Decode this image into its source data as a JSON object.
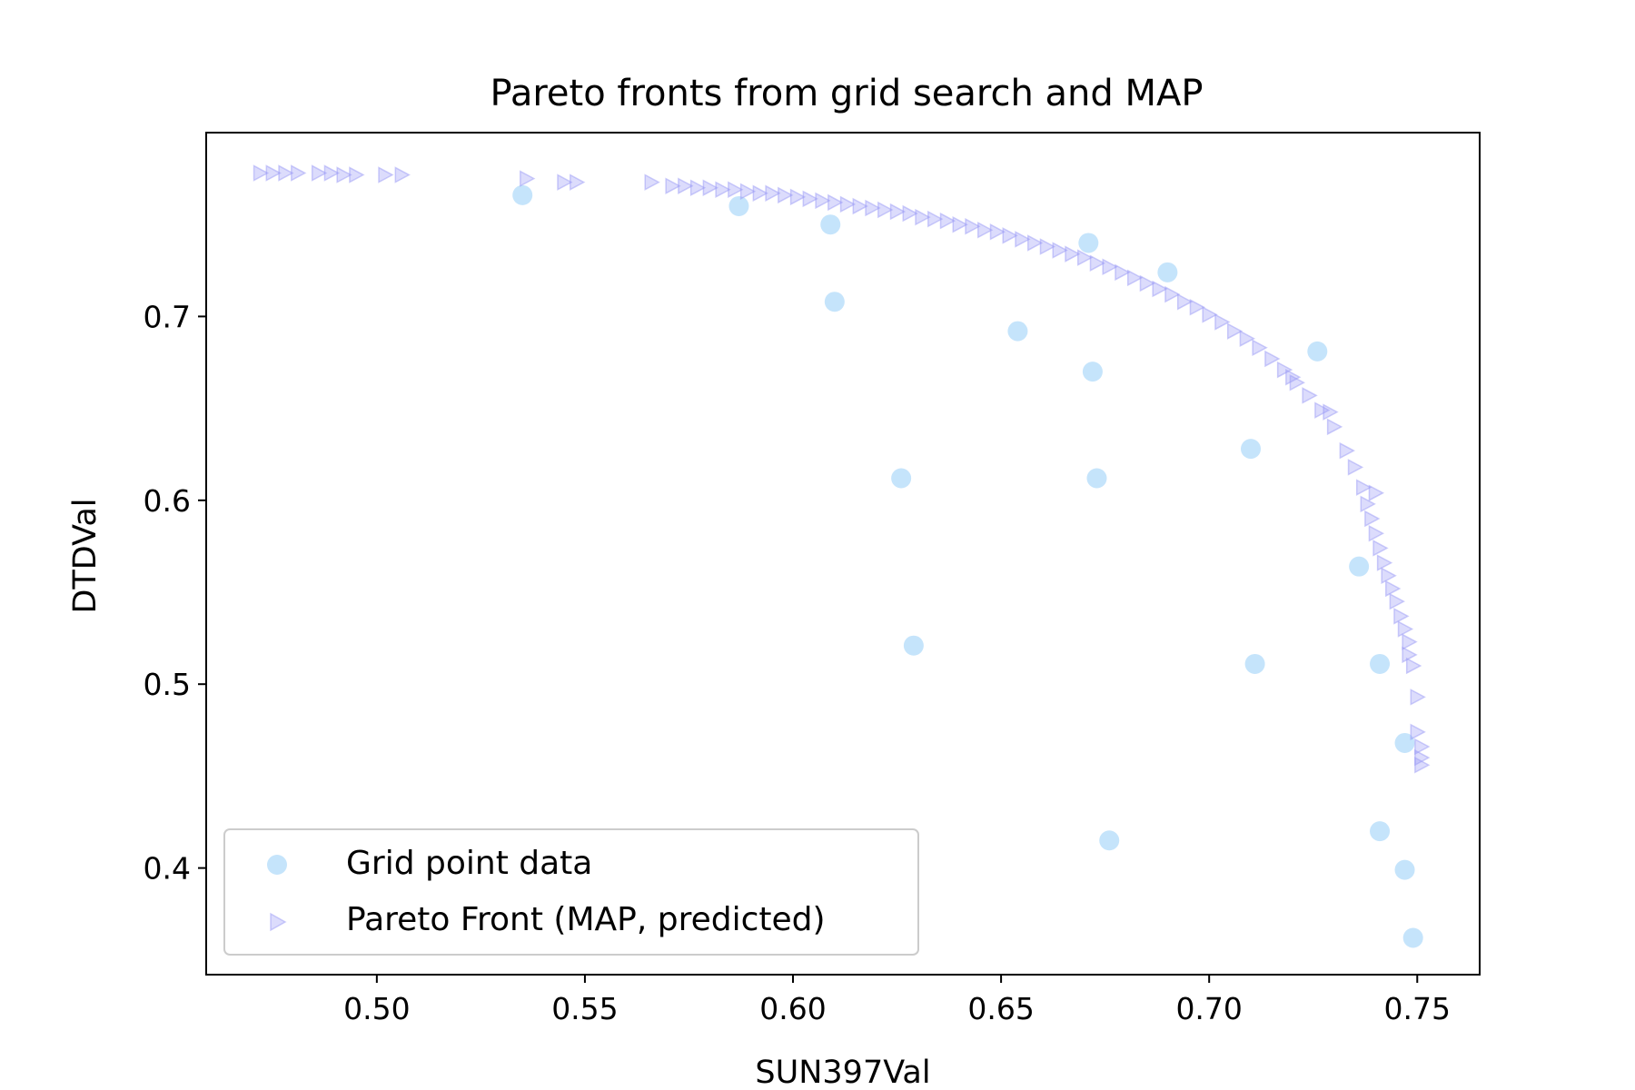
{
  "chart_data": {
    "type": "scatter",
    "title": "Pareto fronts from grid search and MAP",
    "xlabel": "SUN397Val",
    "ylabel": "DTDVal",
    "xlim": [
      0.459,
      0.765
    ],
    "ylim": [
      0.342,
      0.8
    ],
    "xticks": [
      0.5,
      0.55,
      0.6,
      0.65,
      0.7,
      0.75
    ],
    "xtick_labels": [
      "0.50",
      "0.55",
      "0.60",
      "0.65",
      "0.70",
      "0.75"
    ],
    "yticks": [
      0.4,
      0.5,
      0.6,
      0.7
    ],
    "ytick_labels": [
      "0.4",
      "0.5",
      "0.6",
      "0.7"
    ],
    "grid": false,
    "legend_position": "bottom-left",
    "series": [
      {
        "name": "Grid point data",
        "marker": "circle",
        "color": "#c5e4fb",
        "points": [
          [
            0.535,
            0.766
          ],
          [
            0.587,
            0.76
          ],
          [
            0.609,
            0.75
          ],
          [
            0.61,
            0.708
          ],
          [
            0.654,
            0.692
          ],
          [
            0.671,
            0.74
          ],
          [
            0.69,
            0.724
          ],
          [
            0.672,
            0.67
          ],
          [
            0.726,
            0.681
          ],
          [
            0.626,
            0.612
          ],
          [
            0.673,
            0.612
          ],
          [
            0.71,
            0.628
          ],
          [
            0.736,
            0.564
          ],
          [
            0.629,
            0.521
          ],
          [
            0.711,
            0.511
          ],
          [
            0.741,
            0.511
          ],
          [
            0.747,
            0.468
          ],
          [
            0.676,
            0.415
          ],
          [
            0.741,
            0.42
          ],
          [
            0.747,
            0.399
          ],
          [
            0.749,
            0.362
          ]
        ]
      },
      {
        "name": "Pareto Front (MAP, predicted)",
        "marker": "triangle-right",
        "color": "#9c9cf6",
        "points": [
          [
            0.472,
            0.778
          ],
          [
            0.475,
            0.778
          ],
          [
            0.478,
            0.778
          ],
          [
            0.481,
            0.778
          ],
          [
            0.486,
            0.778
          ],
          [
            0.489,
            0.778
          ],
          [
            0.492,
            0.777
          ],
          [
            0.495,
            0.777
          ],
          [
            0.502,
            0.777
          ],
          [
            0.506,
            0.777
          ],
          [
            0.536,
            0.775
          ],
          [
            0.545,
            0.773
          ],
          [
            0.548,
            0.773
          ],
          [
            0.566,
            0.773
          ],
          [
            0.571,
            0.771
          ],
          [
            0.574,
            0.771
          ],
          [
            0.577,
            0.77
          ],
          [
            0.58,
            0.77
          ],
          [
            0.583,
            0.769
          ],
          [
            0.586,
            0.769
          ],
          [
            0.589,
            0.768
          ],
          [
            0.592,
            0.767
          ],
          [
            0.595,
            0.767
          ],
          [
            0.598,
            0.766
          ],
          [
            0.601,
            0.765
          ],
          [
            0.604,
            0.764
          ],
          [
            0.607,
            0.763
          ],
          [
            0.61,
            0.762
          ],
          [
            0.613,
            0.761
          ],
          [
            0.616,
            0.76
          ],
          [
            0.619,
            0.759
          ],
          [
            0.622,
            0.758
          ],
          [
            0.625,
            0.757
          ],
          [
            0.628,
            0.756
          ],
          [
            0.631,
            0.754
          ],
          [
            0.634,
            0.753
          ],
          [
            0.637,
            0.752
          ],
          [
            0.64,
            0.75
          ],
          [
            0.643,
            0.749
          ],
          [
            0.646,
            0.747
          ],
          [
            0.649,
            0.746
          ],
          [
            0.652,
            0.744
          ],
          [
            0.655,
            0.742
          ],
          [
            0.658,
            0.74
          ],
          [
            0.661,
            0.738
          ],
          [
            0.664,
            0.736
          ],
          [
            0.667,
            0.734
          ],
          [
            0.67,
            0.732
          ],
          [
            0.673,
            0.729
          ],
          [
            0.676,
            0.727
          ],
          [
            0.679,
            0.724
          ],
          [
            0.682,
            0.721
          ],
          [
            0.685,
            0.718
          ],
          [
            0.688,
            0.715
          ],
          [
            0.691,
            0.712
          ],
          [
            0.694,
            0.708
          ],
          [
            0.697,
            0.705
          ],
          [
            0.7,
            0.701
          ],
          [
            0.703,
            0.697
          ],
          [
            0.706,
            0.692
          ],
          [
            0.709,
            0.688
          ],
          [
            0.712,
            0.683
          ],
          [
            0.715,
            0.677
          ],
          [
            0.718,
            0.671
          ],
          [
            0.721,
            0.664
          ],
          [
            0.724,
            0.657
          ],
          [
            0.727,
            0.649
          ],
          [
            0.73,
            0.64
          ],
          [
            0.733,
            0.627
          ],
          [
            0.735,
            0.618
          ],
          [
            0.737,
            0.607
          ],
          [
            0.738,
            0.598
          ],
          [
            0.739,
            0.59
          ],
          [
            0.74,
            0.582
          ],
          [
            0.741,
            0.574
          ],
          [
            0.742,
            0.566
          ],
          [
            0.743,
            0.559
          ],
          [
            0.744,
            0.552
          ],
          [
            0.745,
            0.545
          ],
          [
            0.746,
            0.537
          ],
          [
            0.747,
            0.53
          ],
          [
            0.748,
            0.523
          ],
          [
            0.748,
            0.516
          ],
          [
            0.749,
            0.51
          ],
          [
            0.75,
            0.493
          ],
          [
            0.75,
            0.474
          ],
          [
            0.751,
            0.466
          ],
          [
            0.751,
            0.46
          ],
          [
            0.751,
            0.456
          ],
          [
            0.74,
            0.604
          ],
          [
            0.729,
            0.648
          ],
          [
            0.72,
            0.667
          ]
        ]
      }
    ]
  }
}
